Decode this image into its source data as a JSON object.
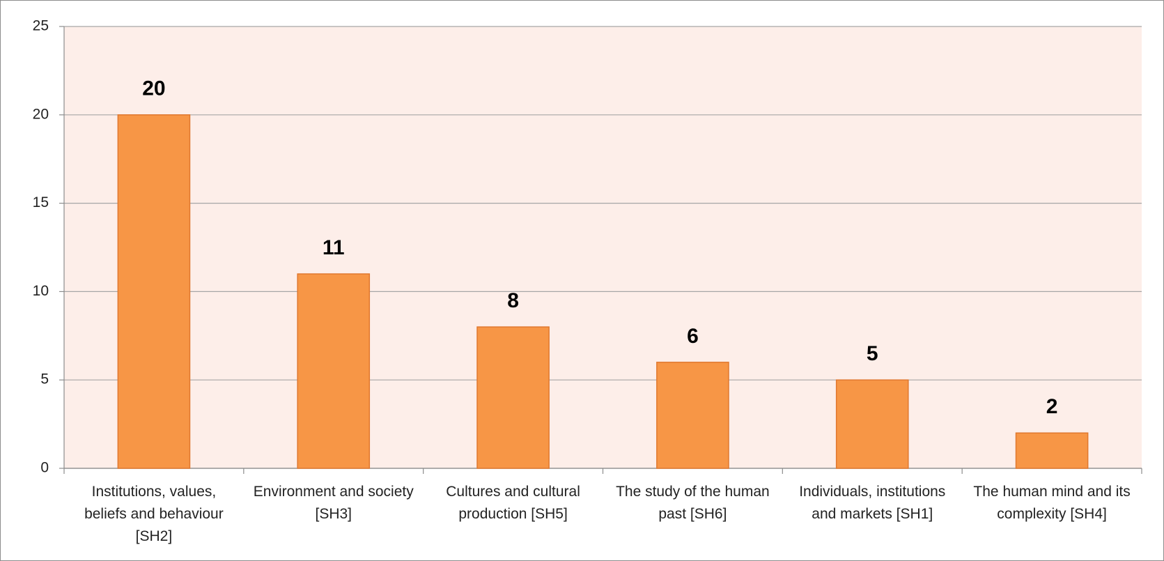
{
  "chart_data": {
    "type": "bar",
    "categories": [
      "Institutions, values, beliefs and behaviour [SH2]",
      "Environment and society [SH3]",
      "Cultures and cultural production [SH5]",
      "The study of the human past [SH6]",
      "Individuals, institutions and markets [SH1]",
      "The human mind and its complexity [SH4]"
    ],
    "values": [
      20,
      11,
      8,
      6,
      5,
      2
    ],
    "color": "#f79646",
    "ylim": [
      0,
      25
    ],
    "yticks": [
      0,
      5,
      10,
      15,
      20,
      25
    ],
    "grid": true
  }
}
